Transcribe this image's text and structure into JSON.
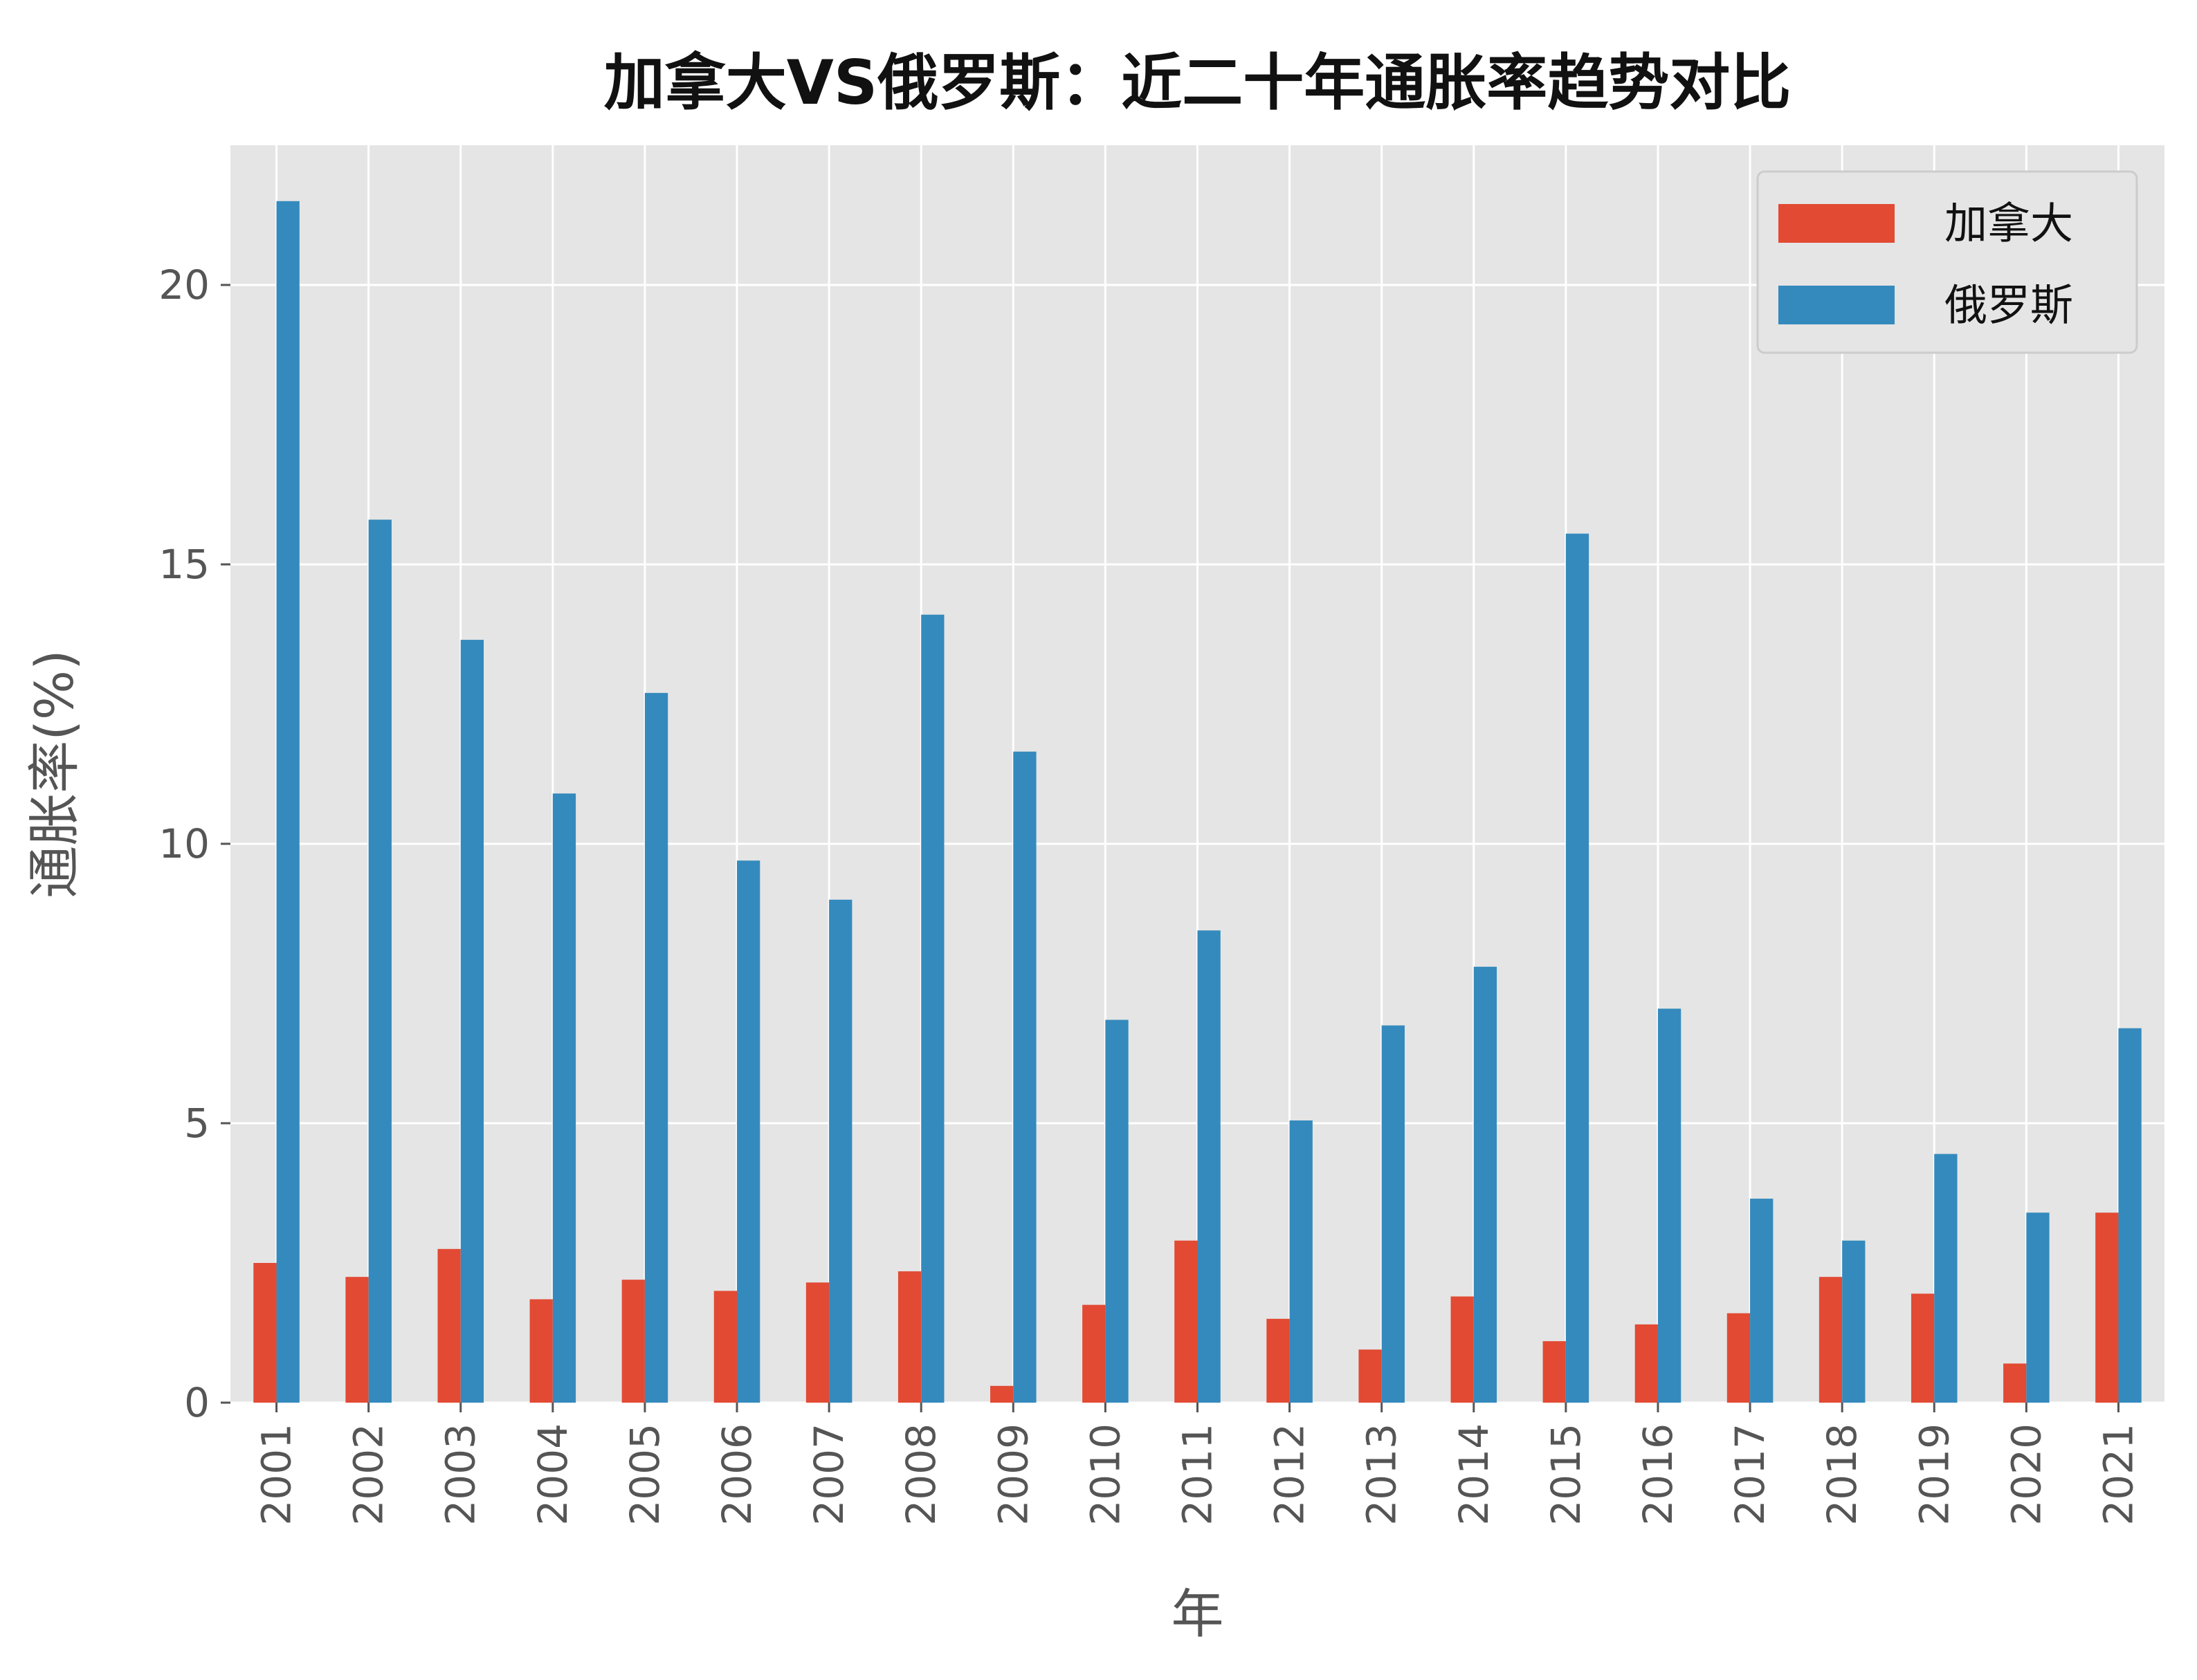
{
  "chart_data": {
    "type": "bar",
    "title": "加拿大VS俄罗斯：近二十年通胀率趋势对比",
    "xlabel": "年",
    "ylabel": "通胀率(%)",
    "categories": [
      "2001",
      "2002",
      "2003",
      "2004",
      "2005",
      "2006",
      "2007",
      "2008",
      "2009",
      "2010",
      "2011",
      "2012",
      "2013",
      "2014",
      "2015",
      "2016",
      "2017",
      "2018",
      "2019",
      "2020",
      "2021"
    ],
    "series": [
      {
        "name": "加拿大",
        "color": "#E24A33",
        "values": [
          2.5,
          2.25,
          2.75,
          1.85,
          2.2,
          2.0,
          2.15,
          2.35,
          0.3,
          1.75,
          2.9,
          1.5,
          0.95,
          1.9,
          1.1,
          1.4,
          1.6,
          2.25,
          1.95,
          0.7,
          3.4
        ]
      },
      {
        "name": "俄罗斯",
        "color": "#348ABD",
        "values": [
          21.5,
          15.8,
          13.65,
          10.9,
          12.7,
          9.7,
          9.0,
          14.1,
          11.65,
          6.85,
          8.45,
          5.05,
          6.75,
          7.8,
          15.55,
          7.05,
          3.65,
          2.9,
          4.45,
          3.4,
          6.7
        ]
      }
    ],
    "yticks": [
      0,
      5,
      10,
      15,
      20
    ],
    "ylim": [
      0,
      22.5
    ],
    "grid": true,
    "legend_position": "top-right",
    "plot_background": "#E5E5E5",
    "grid_color": "#FFFFFF"
  }
}
